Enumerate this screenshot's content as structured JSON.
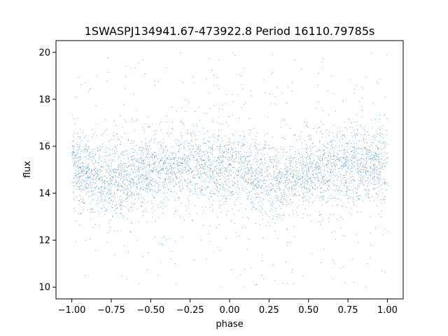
{
  "chart_data": {
    "type": "scatter",
    "title": "1SWASPJ134941.67-473922.8 Period 16110.79785s",
    "xlabel": "phase",
    "ylabel": "flux",
    "xlim": [
      -1.1,
      1.1
    ],
    "ylim": [
      9.5,
      20.5
    ],
    "xticks": [
      -1.0,
      -0.75,
      -0.5,
      -0.25,
      0.0,
      0.25,
      0.5,
      0.75,
      1.0
    ],
    "xtick_labels": [
      "−1.00",
      "−0.75",
      "−0.50",
      "−0.25",
      "0.00",
      "0.25",
      "0.50",
      "0.75",
      "1.00"
    ],
    "yticks": [
      10,
      12,
      14,
      16,
      18,
      20
    ],
    "ytick_labels": [
      "10",
      "12",
      "14",
      "16",
      "18",
      "20"
    ],
    "grid": false,
    "color": "#1f77b4",
    "series": [
      {
        "phase_range": [
          -1.0,
          1.0
        ],
        "flux_range": [
          10.0,
          20.0
        ],
        "mean_flux_by_phase": [
          {
            "phase": -1.0,
            "flux": 15.1
          },
          {
            "phase": -0.75,
            "flux": 14.6
          },
          {
            "phase": -0.5,
            "flux": 14.9
          },
          {
            "phase": -0.25,
            "flux": 15.2
          },
          {
            "phase": 0.0,
            "flux": 15.1
          },
          {
            "phase": 0.25,
            "flux": 14.6
          },
          {
            "phase": 0.5,
            "flux": 14.9
          },
          {
            "phase": 0.75,
            "flux": 15.2
          },
          {
            "phase": 1.0,
            "flux": 15.1
          }
        ],
        "typical_scatter": 0.75
      }
    ]
  }
}
